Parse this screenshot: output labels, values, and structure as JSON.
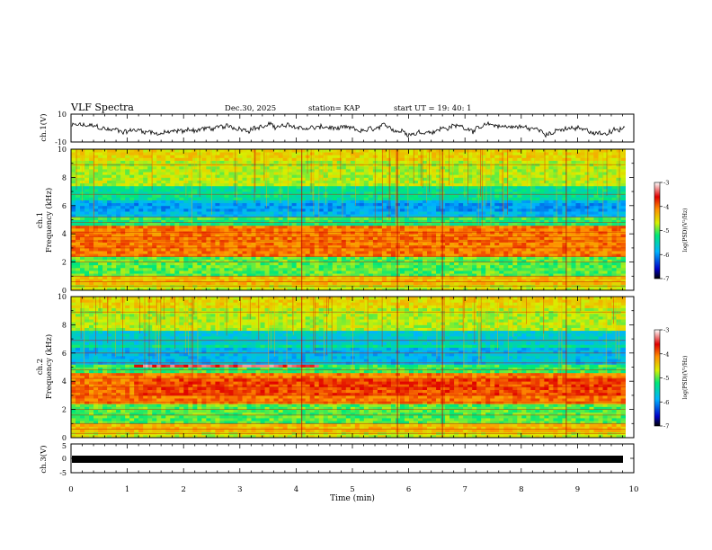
{
  "header": {
    "title": "VLF Spectra",
    "date": "Dec.30, 2025",
    "station": "station= KAP",
    "start": "start  UT =   19: 40: 1"
  },
  "chart_data": [
    {
      "type": "line",
      "panel": "ch1",
      "ylabel": "ch.1(V)",
      "ylim": [
        -10,
        10
      ],
      "ytick_labels": [
        "10",
        "-10"
      ],
      "xlim": [
        0,
        9.85
      ]
    },
    {
      "type": "heatmap",
      "panel": "spec1",
      "ylabel_line1": "ch.1",
      "ylabel_line2": "Frequency (kHz)",
      "ylim": [
        0,
        10
      ],
      "ytick_labels": [
        "0",
        "2",
        "4",
        "6",
        "8",
        "10"
      ],
      "colorbar": {
        "range": [
          -7,
          -3
        ],
        "tick_labels": [
          "-3",
          "-4",
          "-5",
          "-6",
          "-7"
        ],
        "label": "log(PSD)(V²/Hz)"
      }
    },
    {
      "type": "heatmap",
      "panel": "spec2",
      "ylabel_line1": "ch.2",
      "ylabel_line2": "Frequency (kHz)",
      "ylim": [
        0,
        10
      ],
      "ytick_labels": [
        "0",
        "2",
        "4",
        "6",
        "8",
        "10"
      ],
      "colorbar": {
        "range": [
          -7,
          -3
        ],
        "tick_labels": [
          "-3",
          "-4",
          "-5",
          "-6",
          "-7"
        ],
        "label": "log(PSD)(V²/Hz)"
      }
    },
    {
      "type": "line",
      "panel": "ch3",
      "ylabel": "ch.3(V)",
      "ylim": [
        -5,
        5
      ],
      "ytick_labels": [
        "5",
        "0",
        "-5"
      ]
    }
  ],
  "xaxis": {
    "label": "Time (min)",
    "range": [
      0,
      10
    ],
    "tick_labels": [
      "0",
      "1",
      "2",
      "3",
      "4",
      "5",
      "6",
      "7",
      "8",
      "9",
      "10"
    ]
  }
}
